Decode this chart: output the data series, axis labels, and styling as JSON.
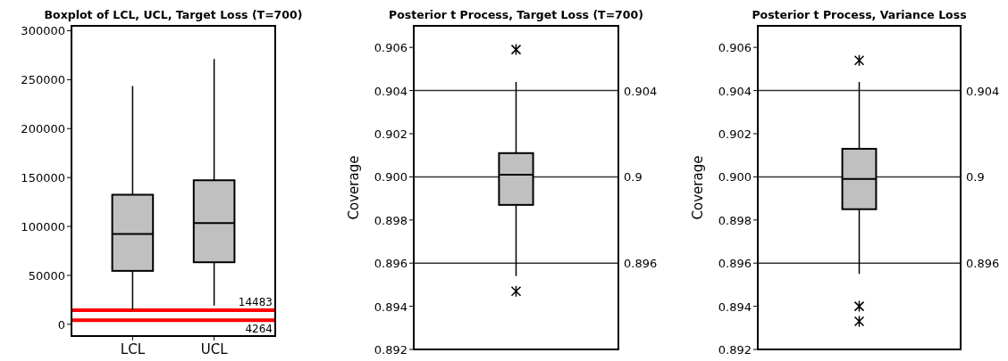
{
  "chart_data": [
    {
      "type": "box",
      "title": "Boxplot of LCL, UCL, Target Loss (T=700)",
      "categories": [
        "LCL",
        "UCL"
      ],
      "ylim": [
        -12000,
        305000
      ],
      "yticks": [
        0,
        50000,
        100000,
        150000,
        200000,
        250000,
        300000
      ],
      "boxes": [
        {
          "low": 14600,
          "q1": 54600,
          "median": 92300,
          "q3": 132400,
          "high": 243500
        },
        {
          "low": 19100,
          "q1": 63400,
          "median": 103500,
          "q3": 147200,
          "high": 271100
        }
      ],
      "color": "#c0c0c0",
      "ref_lines": [
        {
          "axis": "y",
          "value": 14483,
          "label": "14483",
          "color": "#ff0000"
        },
        {
          "axis": "y",
          "value": 4264,
          "label": "4264",
          "color": "#ff0000"
        }
      ]
    },
    {
      "type": "box",
      "title": "Posterior t Process, Target Loss (T=700)",
      "ylabel": "Coverage",
      "categories": [
        null
      ],
      "ylim": [
        0.892,
        0.907
      ],
      "yticks": [
        {
          "value": 0.892,
          "label": "0.892"
        },
        {
          "value": 0.894,
          "label": "0.894"
        },
        {
          "value": 0.896,
          "label": "0.896"
        },
        {
          "value": 0.898,
          "label": "0.898"
        },
        {
          "value": 0.9,
          "label": "0.900"
        },
        {
          "value": 0.902,
          "label": "0.902"
        },
        {
          "value": 0.904,
          "label": "0.904"
        },
        {
          "value": 0.906,
          "label": "0.906"
        }
      ],
      "boxes": [
        {
          "low": 0.8954,
          "q1": 0.8987,
          "median": 0.9001,
          "q3": 0.9011,
          "high": 0.9044,
          "outliers": [
            0.9059,
            0.8947
          ]
        }
      ],
      "color": "#c0c0c0",
      "ref_lines": [
        {
          "axis": "y",
          "value": 0.904,
          "label": "0.904"
        },
        {
          "axis": "y",
          "value": 0.9,
          "label": "0.9"
        },
        {
          "axis": "y",
          "value": 0.896,
          "label": "0.896"
        }
      ]
    },
    {
      "type": "box",
      "title": "Posterior t Process, Variance Loss",
      "ylabel": "Coverage",
      "categories": [
        null
      ],
      "ylim": [
        0.892,
        0.907
      ],
      "yticks": [
        {
          "value": 0.892,
          "label": "0.892"
        },
        {
          "value": 0.894,
          "label": "0.894"
        },
        {
          "value": 0.896,
          "label": "0.896"
        },
        {
          "value": 0.898,
          "label": "0.898"
        },
        {
          "value": 0.9,
          "label": "0.900"
        },
        {
          "value": 0.902,
          "label": "0.902"
        },
        {
          "value": 0.904,
          "label": "0.904"
        },
        {
          "value": 0.906,
          "label": "0.906"
        }
      ],
      "boxes": [
        {
          "low": 0.8955,
          "q1": 0.8985,
          "median": 0.8999,
          "q3": 0.9013,
          "high": 0.9044,
          "outliers": [
            0.9054,
            0.894,
            0.8933
          ]
        }
      ],
      "color": "#c0c0c0",
      "ref_lines": [
        {
          "axis": "y",
          "value": 0.904,
          "label": "0.904"
        },
        {
          "axis": "y",
          "value": 0.9,
          "label": "0.9"
        },
        {
          "axis": "y",
          "value": 0.896,
          "label": "0.896"
        }
      ]
    }
  ]
}
